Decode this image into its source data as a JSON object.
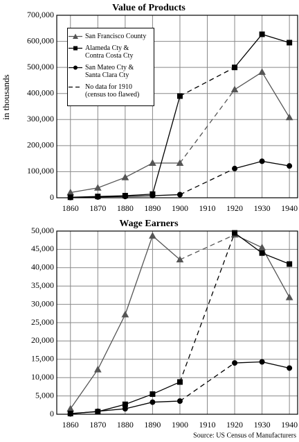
{
  "chart_data": [
    {
      "type": "line",
      "title": "Value of Products",
      "y_label": "in thousands",
      "x": [
        1860,
        1870,
        1880,
        1890,
        1900,
        1920,
        1930,
        1940
      ],
      "xlim": [
        1855,
        1943
      ],
      "xticks": [
        1860,
        1870,
        1880,
        1890,
        1900,
        1910,
        1920,
        1930,
        1940
      ],
      "ylim": [
        0,
        700000
      ],
      "yticks": [
        0,
        {
          "value": 100000,
          "label": "100,000"
        },
        {
          "value": 200000,
          "label": "200,000"
        },
        {
          "value": 300000,
          "label": "300,000"
        },
        {
          "value": 400000,
          "label": "400,000"
        },
        {
          "value": 500000,
          "label": "500,000"
        },
        {
          "value": 600000,
          "label": "600,000"
        },
        {
          "value": 700000,
          "label": "700,000"
        }
      ],
      "grid": true,
      "series": [
        {
          "name": "San Francisco County",
          "color": "#555555",
          "marker": "triangle",
          "values": [
            20000,
            38000,
            78000,
            133000,
            133000,
            415000,
            482000,
            308000
          ]
        },
        {
          "name": "Alameda Cty & Contra Costa Cty",
          "color": "#000000",
          "marker": "square",
          "values": [
            2000,
            5000,
            8000,
            14000,
            390000,
            500000,
            627000,
            595000
          ]
        },
        {
          "name": "San Mateo Cty & Santa Clara Cty",
          "color": "#000000",
          "marker": "circle",
          "values": [
            1000,
            3000,
            5000,
            8000,
            12000,
            112000,
            140000,
            122000
          ]
        }
      ],
      "gap_note": "No data for 1910 (census too flawed)"
    },
    {
      "type": "line",
      "title": "Wage Earners",
      "x": [
        1860,
        1870,
        1880,
        1890,
        1900,
        1920,
        1930,
        1940
      ],
      "xlim": [
        1855,
        1943
      ],
      "xticks": [
        1860,
        1870,
        1880,
        1890,
        1900,
        1910,
        1920,
        1930,
        1940
      ],
      "ylim": [
        0,
        50000
      ],
      "yticks": [
        0,
        {
          "value": 5000,
          "label": "5,000"
        },
        {
          "value": 10000,
          "label": "10,000"
        },
        {
          "value": 15000,
          "label": "15,000"
        },
        {
          "value": 20000,
          "label": "20,000"
        },
        {
          "value": 25000,
          "label": "25,000"
        },
        {
          "value": 30000,
          "label": "30,000"
        },
        {
          "value": 35000,
          "label": "35,000"
        },
        {
          "value": 40000,
          "label": "40,000"
        },
        {
          "value": 45000,
          "label": "45,000"
        },
        {
          "value": 50000,
          "label": "50,000"
        }
      ],
      "grid": true,
      "series": [
        {
          "color": "#555555",
          "marker": "triangle",
          "values": [
            1500,
            12200,
            27200,
            48700,
            42200,
            49000,
            45500,
            31900
          ]
        },
        {
          "color": "#000000",
          "marker": "square",
          "values": [
            200,
            700,
            2700,
            5500,
            8800,
            49500,
            44000,
            41000
          ]
        },
        {
          "color": "#000000",
          "marker": "circle",
          "values": [
            100,
            800,
            1500,
            3300,
            3600,
            14000,
            14300,
            12600
          ]
        }
      ],
      "source": "Source: US Census of Manufacturers"
    }
  ]
}
